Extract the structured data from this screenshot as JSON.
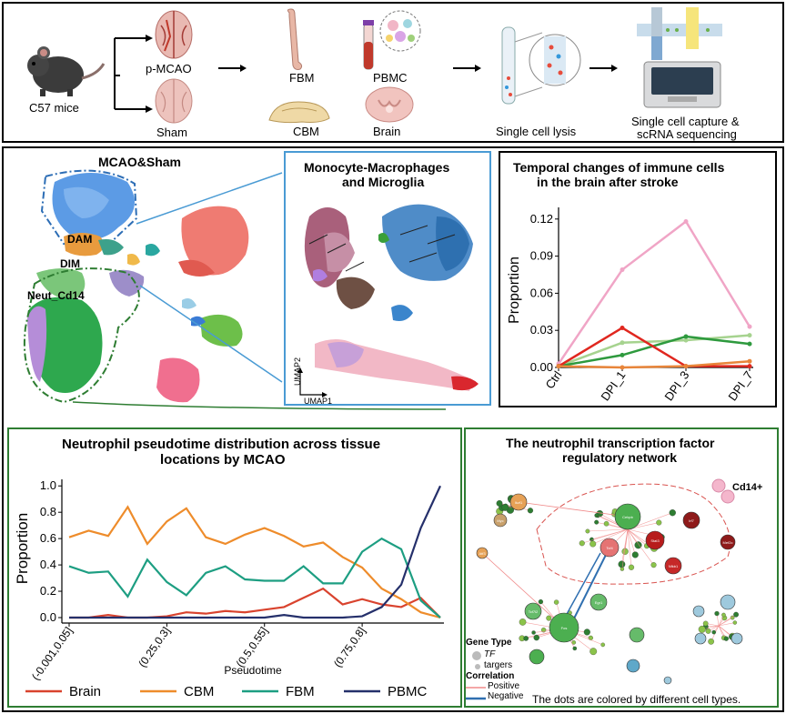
{
  "workflow": {
    "mouse_label": "C57 mice",
    "pmcao_label": "p-MCAO",
    "sham_label": "Sham",
    "fbm_label": "FBM",
    "cbm_label": "CBM",
    "pbmc_label": "PBMC",
    "brain_label": "Brain",
    "lysis_label": "Single cell lysis",
    "capture_label_line1": "Single cell capture &",
    "capture_label_line2": "scRNA sequencing"
  },
  "umap": {
    "title": "MCAO&Sham",
    "dam_label": "DAM",
    "dim_label": "DIM",
    "neut_label": "Neut_Cd14"
  },
  "mono": {
    "title_line1": "Monocyte-Macrophages",
    "title_line2": "and Microglia",
    "axis_y": "UMAP2",
    "axis_x": "UMAP1"
  },
  "temporal_chart": {
    "title_line1": "Temporal changes of immune cells",
    "title_line2": "in the brain after stroke"
  },
  "pseudotime_chart": {
    "title_line1": "Neutrophil pseudotime distribution across tissue",
    "title_line2": "locations by MCAO"
  },
  "network": {
    "title_line1": "The neutrophil transcription factor",
    "title_line2": "regulatory network",
    "cd14_label": "Cd14+",
    "legend_gene_type": "Gene Type",
    "legend_tf": "TF",
    "legend_targets": "targers",
    "legend_correlation": "Correlation",
    "legend_positive": "Positive",
    "legend_negative": "Negative",
    "footnote": "The dots are colored by different cell types.",
    "node_labels": [
      "Cebpb",
      "Tcf4",
      "Stat3",
      "Irf7",
      "Nfkb1",
      "Mef2c",
      "Ikzf1",
      "Myc",
      "Atf3",
      "Fos",
      "Tcf7l2",
      "Egr1"
    ]
  },
  "chart_data": [
    {
      "type": "line",
      "title": "",
      "xlabel": "",
      "ylabel": "Proportion",
      "categories": [
        "Ctrl",
        "DPI_1",
        "DPI_3",
        "DPI_7"
      ],
      "ylim": [
        0,
        0.125
      ],
      "yticks": [
        "0.00",
        "0.03",
        "0.06",
        "0.09",
        "0.12"
      ],
      "series": [
        {
          "color": "#f0a5c6",
          "values": [
            0.003,
            0.079,
            0.118,
            0.033
          ]
        },
        {
          "color": "#a6d38f",
          "values": [
            0.001,
            0.02,
            0.022,
            0.026
          ]
        },
        {
          "color": "#2e9a3e",
          "values": [
            0.001,
            0.01,
            0.025,
            0.019
          ]
        },
        {
          "color": "#e0271f",
          "values": [
            0.001,
            0.032,
            0.001,
            0.001
          ]
        },
        {
          "color": "#e8853a",
          "values": [
            0.001,
            0.0,
            0.001,
            0.005
          ]
        }
      ]
    },
    {
      "type": "line",
      "title": "",
      "xlabel": "Pseudotime",
      "ylabel": "Proportion",
      "ylim": [
        0,
        1.05
      ],
      "yticks": [
        "0.0",
        "0.2",
        "0.4",
        "0.6",
        "0.8",
        "1.0"
      ],
      "xtick_labels": [
        "(-0.001,0.05]",
        "(0.25,0.3]",
        "(0.5,0.55]",
        "(0.75,0.8]"
      ],
      "xtick_positions": [
        0,
        5,
        10,
        15
      ],
      "x_count": 20,
      "series": [
        {
          "name": "Brain",
          "color": "#d9432e",
          "values": [
            0.0,
            0.0,
            0.02,
            0.0,
            0.0,
            0.01,
            0.04,
            0.03,
            0.05,
            0.04,
            0.06,
            0.08,
            0.15,
            0.22,
            0.1,
            0.14,
            0.1,
            0.08,
            0.15,
            0.0
          ]
        },
        {
          "name": "CBM",
          "color": "#ee8c2b",
          "values": [
            0.61,
            0.66,
            0.62,
            0.84,
            0.56,
            0.73,
            0.83,
            0.61,
            0.56,
            0.63,
            0.68,
            0.62,
            0.54,
            0.57,
            0.46,
            0.38,
            0.22,
            0.14,
            0.04,
            0.0
          ]
        },
        {
          "name": "FBM",
          "color": "#1d9e82",
          "values": [
            0.39,
            0.34,
            0.35,
            0.16,
            0.44,
            0.27,
            0.17,
            0.34,
            0.39,
            0.29,
            0.28,
            0.28,
            0.39,
            0.26,
            0.26,
            0.5,
            0.6,
            0.52,
            0.13,
            0.0
          ]
        },
        {
          "name": "PBMC",
          "color": "#25306b",
          "values": [
            0.0,
            0.0,
            0.0,
            0.0,
            0.0,
            0.0,
            0.0,
            0.0,
            0.0,
            0.0,
            0.0,
            0.02,
            0.0,
            0.0,
            0.0,
            0.01,
            0.08,
            0.25,
            0.68,
            1.0
          ]
        }
      ]
    }
  ]
}
